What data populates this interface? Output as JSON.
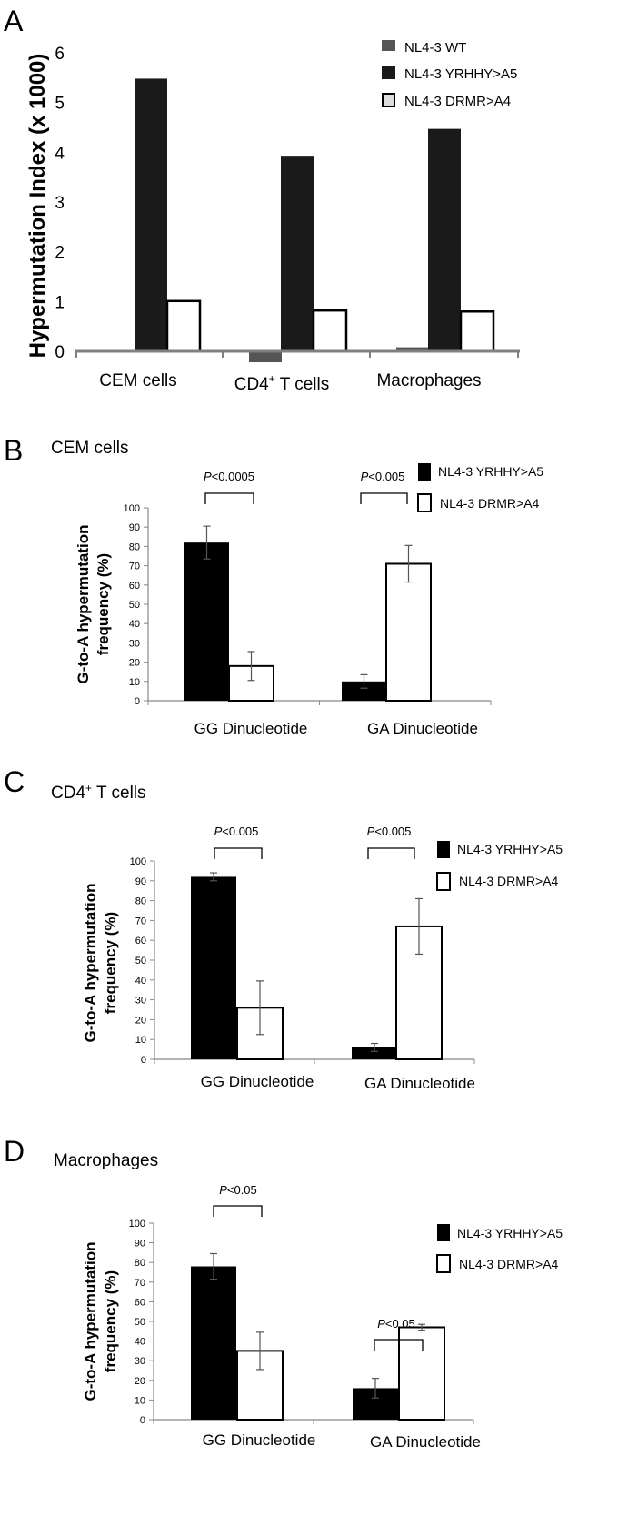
{
  "chart_data": [
    {
      "panel": "A",
      "type": "bar",
      "ylabel": "Hypermutation Index (x 1000)",
      "ylim": [
        0,
        6
      ],
      "yticks": [
        "0",
        "1",
        "2",
        "3",
        "4",
        "5",
        "6"
      ],
      "categories": [
        "CEM cells",
        "CD4",
        "Macrophages"
      ],
      "category_sup": [
        "",
        "+",
        ""
      ],
      "category_suffix": [
        "",
        " T cells",
        ""
      ],
      "series": [
        {
          "name": "NL4-3 WT",
          "color": "#555555",
          "values": [
            0,
            -0.22,
            0.08
          ]
        },
        {
          "name": "NL4-3 YRHHY>A5",
          "color": "#1a1a1a",
          "values": [
            5.48,
            3.93,
            4.47
          ]
        },
        {
          "name": "NL4-3 DRMR>A4",
          "color": "#ffffff",
          "values": [
            1.01,
            0.82,
            0.8
          ]
        }
      ],
      "legend_position": "top-right"
    },
    {
      "panel": "B",
      "title": "CEM cells",
      "type": "bar",
      "ylabel": "G-to-A hypermutation frequency (%)",
      "ylabel_lines": [
        "G-to-A hypermutation",
        "frequency (%)"
      ],
      "ylim": [
        0,
        100
      ],
      "yticks": [
        "0",
        "10",
        "20",
        "30",
        "40",
        "50",
        "60",
        "70",
        "80",
        "90",
        "100"
      ],
      "categories": [
        "GG Dinucleotide",
        "GA Dinucleotide"
      ],
      "series": [
        {
          "name": "NL4-3 YRHHY>A5",
          "color": "#000000",
          "values": [
            82,
            10
          ],
          "errors": [
            8.5,
            3.5
          ]
        },
        {
          "name": "NL4-3 DRMR>A4",
          "color": "#ffffff",
          "values": [
            18,
            71
          ],
          "errors": [
            7.5,
            9.5
          ]
        }
      ],
      "pvalues": [
        "<0.0005",
        "<0.005"
      ],
      "legend_position": "top-right"
    },
    {
      "panel": "C",
      "title": "CD4",
      "title_sup": "+",
      "title_suffix": " T cells",
      "type": "bar",
      "ylabel": "G-to-A hypermutation frequency (%)",
      "ylabel_lines": [
        "G-to-A hypermutation",
        "frequency (%)"
      ],
      "ylim": [
        0,
        100
      ],
      "yticks": [
        "0",
        "10",
        "20",
        "30",
        "40",
        "50",
        "60",
        "70",
        "80",
        "90",
        "100"
      ],
      "categories": [
        "GG Dinucleotide",
        "GA Dinucleotide"
      ],
      "series": [
        {
          "name": "NL4-3 YRHHY>A5",
          "color": "#000000",
          "values": [
            92,
            6
          ],
          "errors": [
            2,
            2
          ]
        },
        {
          "name": "NL4-3 DRMR>A4",
          "color": "#ffffff",
          "values": [
            26,
            67
          ],
          "errors": [
            13.5,
            14
          ]
        }
      ],
      "pvalues": [
        "<0.005",
        "<0.005"
      ],
      "legend_position": "top-right"
    },
    {
      "panel": "D",
      "title": "Macrophages",
      "type": "bar",
      "ylabel": "G-to-A hypermutation frequency (%)",
      "ylabel_lines": [
        "G-to-A hypermutation",
        "frequency (%)"
      ],
      "ylim": [
        0,
        100
      ],
      "yticks": [
        "0",
        "10",
        "20",
        "30",
        "40",
        "50",
        "60",
        "70",
        "80",
        "90",
        "100"
      ],
      "categories": [
        "GG Dinucleotide",
        "GA Dinucleotide"
      ],
      "series": [
        {
          "name": "NL4-3 YRHHY>A5",
          "color": "#000000",
          "values": [
            78,
            16
          ],
          "errors": [
            6.5,
            5
          ]
        },
        {
          "name": "NL4-3 DRMR>A4",
          "color": "#ffffff",
          "values": [
            35,
            47
          ],
          "errors": [
            9.5,
            1.5
          ]
        }
      ],
      "pvalues": [
        "<0.05",
        "<0.05"
      ],
      "legend_position": "right"
    }
  ],
  "pvalue_prefix": "P"
}
